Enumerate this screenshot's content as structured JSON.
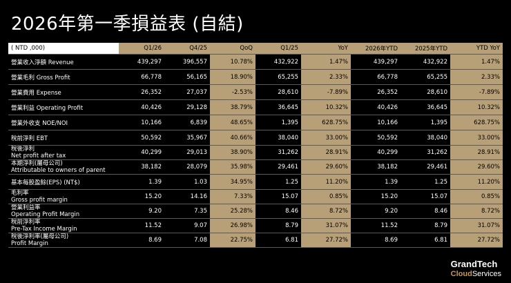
{
  "title": "2026年第一季損益表 (自結)",
  "table": {
    "headers": [
      "( NTD ,000)",
      "Q1/26",
      "Q4/25",
      "QoQ",
      "Q1/25",
      "YoY",
      "2026年YTD",
      "2025年YTD",
      "YTD YoY"
    ],
    "rows": [
      {
        "label": [
          "營業收入淨額 Revenue"
        ],
        "values": [
          "439,297",
          "396,557",
          "10.78%",
          "432,922",
          "1.47%",
          "439,297",
          "432,922",
          "1.47%"
        ]
      },
      {
        "label": [
          "營業毛利 Gross Profit"
        ],
        "values": [
          "66,778",
          "56,165",
          "18.90%",
          "65,255",
          "2.33%",
          "66,778",
          "65,255",
          "2.33%"
        ]
      },
      {
        "label": [
          "營業費用 Expense"
        ],
        "values": [
          "26,352",
          "27,037",
          "-2.53%",
          "28,610",
          "-7.89%",
          "26,352",
          "28,610",
          "-7.89%"
        ]
      },
      {
        "label": [
          "營業利益 Operating Profit"
        ],
        "values": [
          "40,426",
          "29,128",
          "38.79%",
          "36,645",
          "10.32%",
          "40,426",
          "36,645",
          "10.32%"
        ]
      },
      {
        "label": [
          "營業外收支 NOE/NOI"
        ],
        "values": [
          "10,166",
          "6,839",
          "48.65%",
          "1,395",
          "628.75%",
          "10,166",
          "1,395",
          "628.75%"
        ]
      },
      {
        "label": [
          "稅前淨利 EBT"
        ],
        "values": [
          "50,592",
          "35,967",
          "40.66%",
          "38,040",
          "33.00%",
          "50,592",
          "38,040",
          "33.00%"
        ]
      },
      {
        "label": [
          "稅後淨利",
          "Net profit after tax"
        ],
        "values": [
          "40,299",
          "29,013",
          "38.90%",
          "31,262",
          "28.91%",
          "40,299",
          "31,262",
          "28.91%"
        ]
      },
      {
        "label": [
          "本期淨利(屬母公司)",
          "Attributable to owners of parent"
        ],
        "values": [
          "38,182",
          "28,079",
          "35.98%",
          "29,461",
          "29.60%",
          "38,182",
          "29,461",
          "29.60%"
        ]
      },
      {
        "label": [
          "基本每股盈餘(EPS) (NT$)"
        ],
        "values": [
          "1.39",
          "1.03",
          "34.95%",
          "1.25",
          "11.20%",
          "1.39",
          "1.25",
          "11.20%"
        ]
      },
      {
        "label": [
          "毛利率",
          "Gross profit margin"
        ],
        "values": [
          "15.20",
          "14.16",
          "7.33%",
          "15.07",
          "0.85%",
          "15.20",
          "15.07",
          "0.85%"
        ]
      },
      {
        "label": [
          "營業利益率",
          "Operating Profit Margin"
        ],
        "values": [
          "9.20",
          "7.35",
          "25.28%",
          "8.46",
          "8.72%",
          "9.20",
          "8.46",
          "8.72%"
        ]
      },
      {
        "label": [
          "稅前淨利率",
          "Pre-Tax Income Margin"
        ],
        "values": [
          "11.52",
          "9.07",
          "26.98%",
          "8.79",
          "31.07%",
          "11.52",
          "8.79",
          "31.07%"
        ]
      },
      {
        "label": [
          "稅後淨利率(屬母公司)",
          "Profit Margin"
        ],
        "values": [
          "8.69",
          "7.08",
          "22.75%",
          "6.81",
          "27.72%",
          "8.69",
          "6.81",
          "27.72%"
        ]
      }
    ]
  },
  "logo": {
    "line1": "GrandTech",
    "cloud": "Cloud",
    "services": "Services"
  },
  "colors": {
    "accent": "#b79f78",
    "background": "#000000"
  }
}
